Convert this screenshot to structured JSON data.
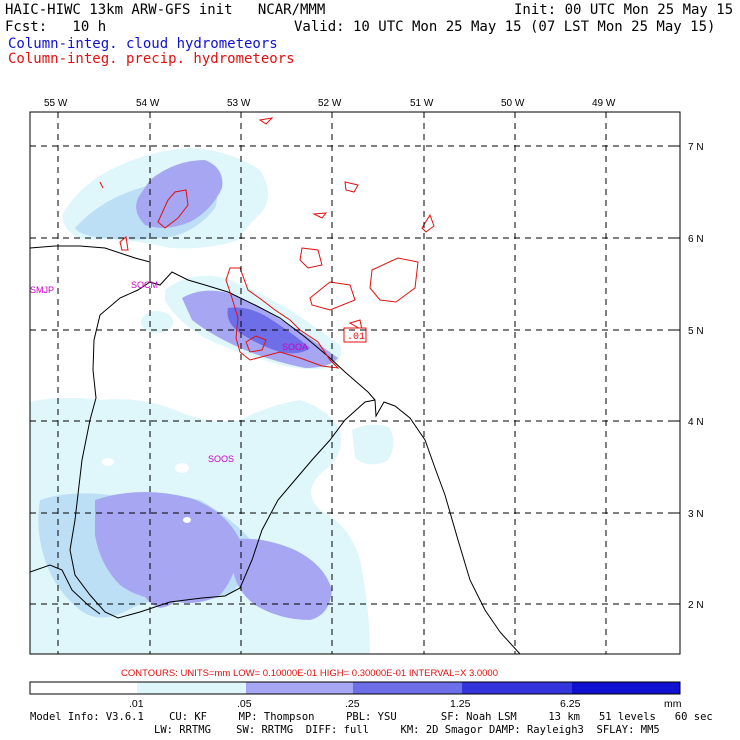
{
  "header": {
    "title": "HAIC-HIWC 13km ARW-GFS init   NCAR/MMM",
    "init": "Init: 00 UTC Mon 25 May 15",
    "fcst": "Fcst:   10 h",
    "valid": "Valid: 10 UTC Mon 25 May 15 (07 LST Mon 25 May 15)"
  },
  "legend": {
    "cloud_label": "Column-integ. cloud hydrometeors",
    "precip_label": "Column-integ. precip. hydrometeors",
    "cloud_color": "#1010cc",
    "precip_color": "#e01010"
  },
  "map": {
    "lon_labels": [
      "55 W",
      "54 W",
      "53 W",
      "52 W",
      "51 W",
      "50 W",
      "49 W"
    ],
    "lat_labels": [
      "7 N",
      "6 N",
      "5 N",
      "4 N",
      "3 N",
      "2 N"
    ],
    "stations": [
      "SMJP",
      "SOCM",
      "SOOA",
      "SOOS"
    ],
    "contour_label": ".01"
  },
  "colorbar": {
    "contours_text": "CONTOURS:  UNITS=mm  LOW= 0.10000E-01  HIGH= 0.30000E-01  INTERVAL=X  3.0000",
    "ticks": [
      ".01",
      ".05",
      ".25",
      "1.25",
      "6.25"
    ],
    "unit": "mm",
    "colors": [
      "#ffffff",
      "#dff6fb",
      "#bcdff5",
      "#a6a6f2",
      "#6e6ee8",
      "#3434dc",
      "#1010d0"
    ]
  },
  "footer": {
    "line1": "Model Info: V3.6.1    CU: KF     MP: Thompson     PBL: YSU       SF: Noah LSM     13 km   51 levels   60 sec",
    "line2": "LW: RRTMG    SW: RRTMG  DIFF: full     KM: 2D Smagor DAMP: Rayleigh3  SFLAY: MM5"
  }
}
